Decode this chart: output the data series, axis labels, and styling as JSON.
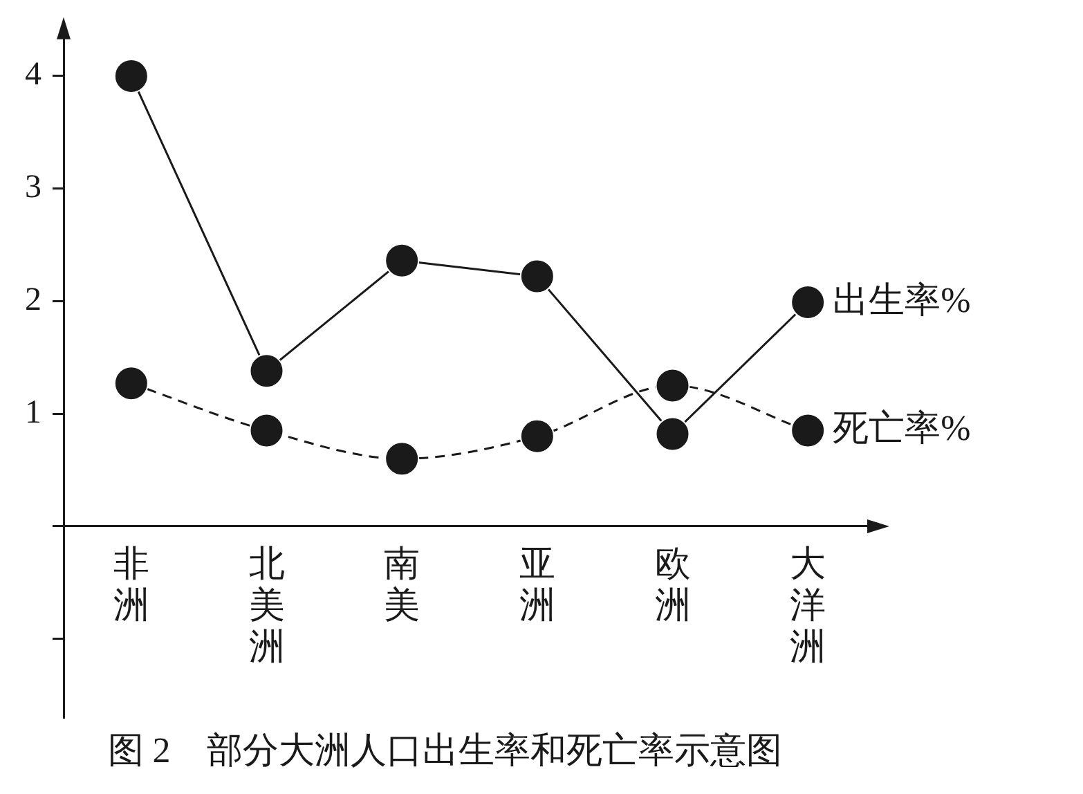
{
  "chart_data": {
    "type": "line",
    "title": "图 2　部分大洲人口出生率和死亡率示意图",
    "categories": [
      "非洲",
      "北美洲",
      "南美",
      "亚洲",
      "欧洲",
      "大洋洲"
    ],
    "series": [
      {
        "name": "出生率%",
        "color": "#1a1a1a",
        "values": [
          4.0,
          1.38,
          2.36,
          2.22,
          0.82,
          1.99
        ],
        "line_style": "solid"
      },
      {
        "name": "死亡率%",
        "color": "#1a1a1a",
        "values": [
          1.27,
          0.85,
          0.6,
          0.8,
          1.25,
          0.85
        ],
        "line_style": "dashed"
      }
    ],
    "ylim": [
      -1.7,
      4.4
    ],
    "yticks": [
      {
        "value": -1,
        "label": null
      },
      {
        "value": 0,
        "label": null
      },
      1,
      2,
      3,
      4
    ],
    "grid": false,
    "marker": "circle",
    "legend": false
  }
}
